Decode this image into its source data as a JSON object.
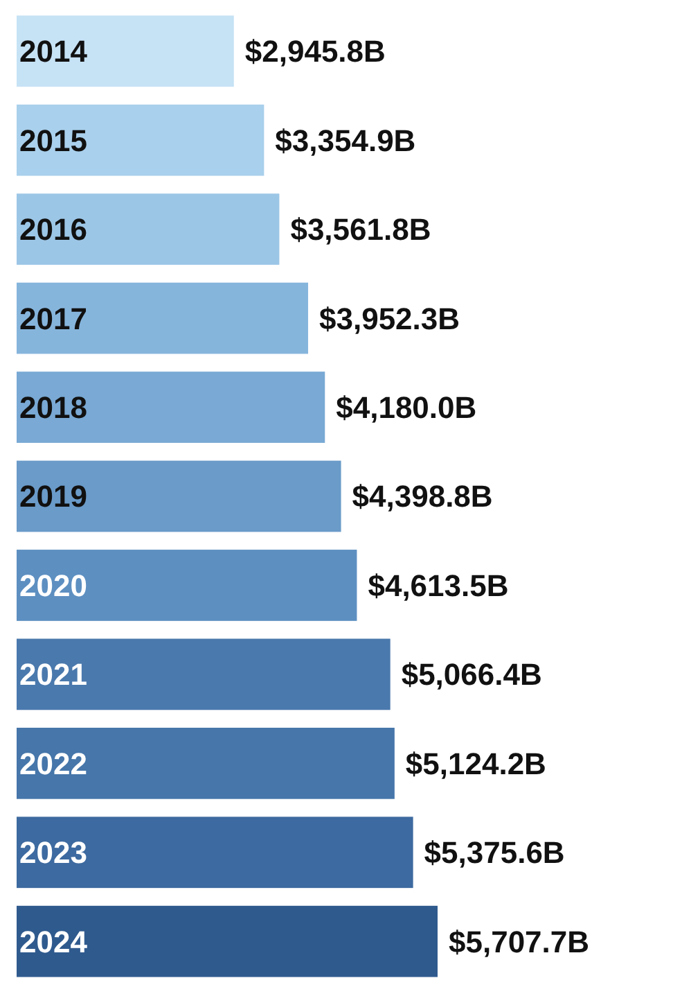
{
  "chart_data": {
    "type": "bar",
    "orientation": "horizontal",
    "categories": [
      "2014",
      "2015",
      "2016",
      "2017",
      "2018",
      "2019",
      "2020",
      "2021",
      "2022",
      "2023",
      "2024"
    ],
    "values": [
      2945.8,
      3354.9,
      3561.8,
      3952.3,
      4180.0,
      4398.8,
      4613.5,
      5066.4,
      5124.2,
      5375.6,
      5707.7
    ],
    "value_labels": [
      "$2,945.8B",
      "$3,354.9B",
      "$3,561.8B",
      "$3,952.3B",
      "$4,180.0B",
      "$4,398.8B",
      "$4,613.5B",
      "$5,066.4B",
      "$5,124.2B",
      "$5,375.6B",
      "$5,707.7B"
    ],
    "colors": [
      "#c6e2f5",
      "#a9d0ec",
      "#9cc6e6",
      "#86b5dc",
      "#79a9d4",
      "#6a9bc9",
      "#5d8fc1",
      "#4a79ad",
      "#4676aa",
      "#3d6aa0",
      "#2f5a8e"
    ]
  }
}
